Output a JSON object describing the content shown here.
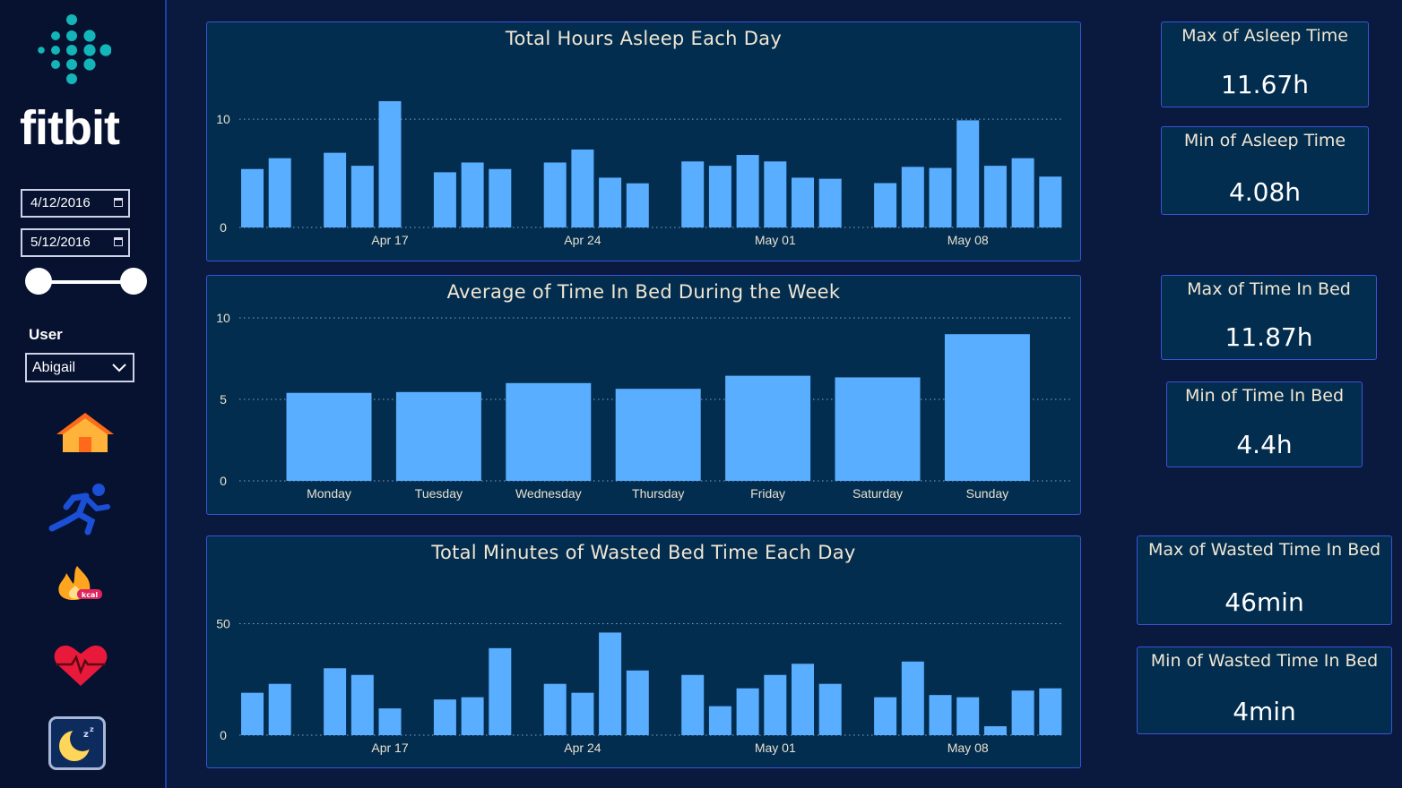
{
  "brand": "fitbit",
  "filters": {
    "start_date": "4/12/2016",
    "end_date": "5/12/2016",
    "user_label": "User",
    "user_value": "Abigail"
  },
  "nav_icons": [
    "home-icon",
    "running-icon",
    "kcal-flame-icon",
    "heart-rate-icon",
    "sleep-moon-icon"
  ],
  "colors": {
    "bar": "#5aaeff",
    "panel": "#022d4f",
    "border": "#3d52d6",
    "background": "#0a1a3f"
  },
  "kpis": {
    "max_asleep": {
      "title": "Max of Asleep Time",
      "value": "11.67h"
    },
    "min_asleep": {
      "title": "Min of Asleep Time",
      "value": "4.08h"
    },
    "max_bed": {
      "title": "Max of Time In Bed",
      "value": "11.87h"
    },
    "min_bed": {
      "title": "Min of Time In Bed",
      "value": "4.4h"
    },
    "max_wasted": {
      "title": "Max of Wasted Time In Bed",
      "value": "46min"
    },
    "min_wasted": {
      "title": "Min of Wasted Time In Bed",
      "value": "4min"
    }
  },
  "chart_data": [
    {
      "type": "bar",
      "title": "Total Hours Asleep Each Day",
      "x": [
        "2016-04-12",
        "2016-04-13",
        "2016-04-15",
        "2016-04-16",
        "2016-04-17",
        "2016-04-19",
        "2016-04-20",
        "2016-04-21",
        "2016-04-23",
        "2016-04-24",
        "2016-04-25",
        "2016-04-26",
        "2016-04-28",
        "2016-04-29",
        "2016-04-30",
        "2016-05-01",
        "2016-05-02",
        "2016-05-03",
        "2016-05-05",
        "2016-05-06",
        "2016-05-07",
        "2016-05-08",
        "2016-05-09",
        "2016-05-10",
        "2016-05-11"
      ],
      "values": [
        5.4,
        6.4,
        6.9,
        5.7,
        11.67,
        5.1,
        6.0,
        5.4,
        6.0,
        7.2,
        4.6,
        4.08,
        6.1,
        5.7,
        6.7,
        6.1,
        4.6,
        4.5,
        4.1,
        5.6,
        5.5,
        9.9,
        5.7,
        6.4,
        4.7
      ],
      "x_ticks": [
        "Apr 17",
        "Apr 24",
        "May 01",
        "May 08"
      ],
      "y_ticks": [
        0,
        10
      ],
      "ylim": [
        0,
        12
      ],
      "grid": true
    },
    {
      "type": "bar",
      "title": "Average of Time In Bed During the Week",
      "categories": [
        "Monday",
        "Tuesday",
        "Wednesday",
        "Thursday",
        "Friday",
        "Saturday",
        "Sunday"
      ],
      "values": [
        5.4,
        5.45,
        6.0,
        5.65,
        6.45,
        6.35,
        9.0
      ],
      "y_ticks": [
        0,
        5,
        10
      ],
      "ylim": [
        0,
        10
      ],
      "grid": true
    },
    {
      "type": "bar",
      "title": "Total Minutes of Wasted Bed Time Each Day",
      "x": [
        "2016-04-12",
        "2016-04-13",
        "2016-04-15",
        "2016-04-16",
        "2016-04-17",
        "2016-04-19",
        "2016-04-20",
        "2016-04-21",
        "2016-04-23",
        "2016-04-24",
        "2016-04-25",
        "2016-04-26",
        "2016-04-28",
        "2016-04-29",
        "2016-04-30",
        "2016-05-01",
        "2016-05-02",
        "2016-05-03",
        "2016-05-05",
        "2016-05-06",
        "2016-05-07",
        "2016-05-08",
        "2016-05-09",
        "2016-05-10",
        "2016-05-11"
      ],
      "values": [
        19,
        23,
        30,
        27,
        12,
        16,
        17,
        39,
        23,
        19,
        46,
        29,
        27,
        13,
        21,
        27,
        32,
        23,
        17,
        33,
        18,
        17,
        4,
        20,
        21
      ],
      "x_ticks": [
        "Apr 17",
        "Apr 24",
        "May 01",
        "May 08"
      ],
      "y_ticks": [
        0,
        50
      ],
      "ylim": [
        0,
        57
      ],
      "grid": true
    }
  ]
}
